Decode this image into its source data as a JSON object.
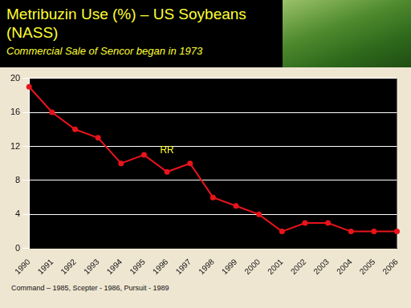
{
  "chart_data": {
    "type": "line",
    "title": "Metribuzin Use (%) – US Soybeans (NASS)",
    "subtitle": "Commercial Sale of Sencor began in 1973",
    "footer": "Command – 1985, Scepter - 1986, Pursuit - 1989",
    "categories": [
      "1990",
      "1991",
      "1992",
      "1993",
      "1994",
      "1995",
      "1996",
      "1997",
      "1998",
      "1999",
      "2000",
      "2001",
      "2002",
      "2003",
      "2004",
      "2005",
      "2006"
    ],
    "values": [
      19,
      16,
      14,
      13,
      10,
      11,
      9,
      10,
      6,
      5,
      4,
      2,
      3,
      3,
      2,
      2,
      2
    ],
    "color": "#e8141b",
    "marker": "circle",
    "line_style": "solid",
    "ylim": [
      0,
      20
    ],
    "yticks": [
      0,
      4,
      8,
      12,
      16,
      20
    ],
    "grid": true,
    "annotations": [
      {
        "text": "RR",
        "x": "1996",
        "y": 11.5
      }
    ]
  }
}
